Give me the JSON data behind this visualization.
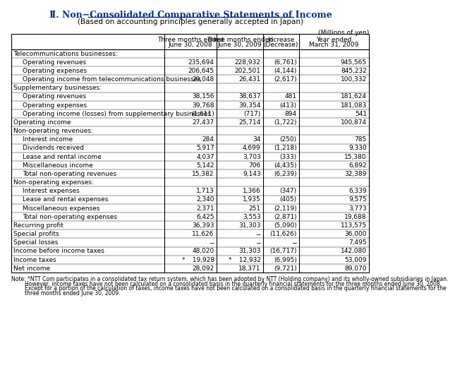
{
  "title": "Ⅱ. Non−Consolidated Comparative Statements of Income",
  "subtitle": "(Based on accounting principles generally accepted in Japan)",
  "units_label": "(Millions of yen)",
  "col_headers": [
    [
      "Three months ended",
      "June 30, 2008"
    ],
    [
      "Three months ended",
      "June 30, 2009"
    ],
    [
      "Increase",
      "(Decrease)"
    ],
    [
      "Year ended",
      "March 31, 2009"
    ]
  ],
  "rows": [
    {
      "label": "Telecommunications businesses:",
      "indent": 0,
      "values": [
        "",
        "",
        "",
        ""
      ],
      "is_section": true
    },
    {
      "label": "Operating revenues",
      "indent": 1,
      "values": [
        "235,694",
        "228,932",
        "(6,761)",
        "945,565"
      ],
      "is_section": false
    },
    {
      "label": "Operating expenses",
      "indent": 1,
      "values": [
        "206,645",
        "202,501",
        "(4,144)",
        "845,232"
      ],
      "is_section": false
    },
    {
      "label": "Operating income from telecommunications businesses",
      "indent": 1,
      "values": [
        "29,048",
        "26,431",
        "(2,617)",
        "100,332"
      ],
      "is_section": false
    },
    {
      "label": "Supplementary businesses:",
      "indent": 0,
      "values": [
        "",
        "",
        "",
        ""
      ],
      "is_section": true
    },
    {
      "label": "Operating revenues",
      "indent": 1,
      "values": [
        "38,156",
        "38,637",
        "481",
        "181,624"
      ],
      "is_section": false
    },
    {
      "label": "Operating expenses",
      "indent": 1,
      "values": [
        "39,768",
        "39,354",
        "(413)",
        "181,083"
      ],
      "is_section": false
    },
    {
      "label": "Operating income (losses) from supplementary businesses",
      "indent": 1,
      "values": [
        "(1,611)",
        "(717)",
        "894",
        "541"
      ],
      "is_section": false
    },
    {
      "label": "Operating income",
      "indent": 0,
      "values": [
        "27,437",
        "25,714",
        "(1,722)",
        "100,874"
      ],
      "is_section": false
    },
    {
      "label": "Non-operating revenues:",
      "indent": 0,
      "values": [
        "",
        "",
        "",
        ""
      ],
      "is_section": true
    },
    {
      "label": "Interest income",
      "indent": 1,
      "values": [
        "284",
        "34",
        "(250)",
        "785"
      ],
      "is_section": false
    },
    {
      "label": "Dividends received",
      "indent": 1,
      "values": [
        "5,917",
        "4,699",
        "(1,218)",
        "9,330"
      ],
      "is_section": false
    },
    {
      "label": "Lease and rental income",
      "indent": 1,
      "values": [
        "4,037",
        "3,703",
        "(333)",
        "15,380"
      ],
      "is_section": false
    },
    {
      "label": "Miscellaneous income",
      "indent": 1,
      "values": [
        "5,142",
        "706",
        "(4,435)",
        "6,892"
      ],
      "is_section": false
    },
    {
      "label": "Total non-operating revenues",
      "indent": 1,
      "values": [
        "15,382",
        "9,143",
        "(6,239)",
        "32,389"
      ],
      "is_section": false
    },
    {
      "label": "Non-operating expenses:",
      "indent": 0,
      "values": [
        "",
        "",
        "",
        ""
      ],
      "is_section": true
    },
    {
      "label": "Interest expenses",
      "indent": 1,
      "values": [
        "1,713",
        "1,366",
        "(347)",
        "6,339"
      ],
      "is_section": false
    },
    {
      "label": "Lease and rental expenses",
      "indent": 1,
      "values": [
        "2,340",
        "1,935",
        "(405)",
        "9,575"
      ],
      "is_section": false
    },
    {
      "label": "Miscellaneous expenses",
      "indent": 1,
      "values": [
        "2,371",
        "251",
        "(2,119)",
        "3,773"
      ],
      "is_section": false
    },
    {
      "label": "Total non-operating expenses",
      "indent": 1,
      "values": [
        "6,425",
        "3,553",
        "(2,871)",
        "19,688"
      ],
      "is_section": false
    },
    {
      "label": "Recurring profit",
      "indent": 0,
      "values": [
        "36,393",
        "31,303",
        "(5,090)",
        "113,575"
      ],
      "is_section": false
    },
    {
      "label": "Special profits",
      "indent": 0,
      "values": [
        "11,626",
        "−",
        "(11,626)",
        "36,000"
      ],
      "is_section": false
    },
    {
      "label": "Special losses",
      "indent": 0,
      "values": [
        "−",
        "−",
        "−",
        "7,495"
      ],
      "is_section": false
    },
    {
      "label": "Income before income taxes",
      "indent": 0,
      "values": [
        "48,020",
        "31,303",
        "(16,717)",
        "142,080"
      ],
      "is_section": false
    },
    {
      "label": "Income taxes",
      "indent": 0,
      "values": [
        "*   19,928",
        "*   12,932",
        "(6,995)",
        "53,009"
      ],
      "is_section": false
    },
    {
      "label": "Net income",
      "indent": 0,
      "values": [
        "28,092",
        "18,371",
        "(9,721)",
        "89,070"
      ],
      "is_section": false
    }
  ],
  "note_lines": [
    "Note: *NTT Com participates in a consolidated tax return system, which has been adopted by NTT (Holding company) and its wholly-owned subsidiaries in Japan.",
    "        However, income taxes have not been calculated on a consolidated basis in the quarterly financial statements for the three months ended June 30, 2008.",
    "        Except for a portion of the calculation of taxes, income taxes have not been calculated on a consolidated basis in the quarterly financial statements for the",
    "        three months ended June 30, 2009."
  ],
  "title_color": "#003087",
  "text_color": "#000000",
  "border_color": "#000000",
  "bg_color": "#ffffff"
}
